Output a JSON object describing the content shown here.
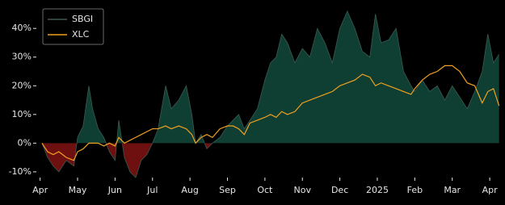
{
  "chart_data": {
    "type": "area-compare",
    "xlim": [
      -0.1,
      12.3
    ],
    "ylim": [
      -12,
      48.5
    ],
    "xticks": [
      {
        "value": 0,
        "label": "Apr"
      },
      {
        "value": 1,
        "label": "May"
      },
      {
        "value": 2,
        "label": "Jun"
      },
      {
        "value": 3,
        "label": "Jul"
      },
      {
        "value": 4,
        "label": "Aug"
      },
      {
        "value": 5,
        "label": "Sep"
      },
      {
        "value": 6,
        "label": "Oct"
      },
      {
        "value": 7,
        "label": "Nov"
      },
      {
        "value": 8,
        "label": "Dec"
      },
      {
        "value": 9,
        "label": "2025"
      },
      {
        "value": 10,
        "label": "Feb"
      },
      {
        "value": 11,
        "label": "Mar"
      },
      {
        "value": 12,
        "label": "Apr"
      }
    ],
    "yticks": [
      {
        "value": -10,
        "label": "-10%"
      },
      {
        "value": 0,
        "label": "0%"
      },
      {
        "value": 10,
        "label": "10%"
      },
      {
        "value": 20,
        "label": "20%"
      },
      {
        "value": 30,
        "label": "30%"
      },
      {
        "value": 40,
        "label": "40%"
      }
    ],
    "legend": "upper left",
    "fill_above": "#0f3f32",
    "fill_below": "#6e1010",
    "x": [
      0.05,
      0.2,
      0.35,
      0.5,
      0.7,
      0.9,
      1.0,
      1.15,
      1.3,
      1.4,
      1.55,
      1.7,
      1.85,
      2.0,
      2.1,
      2.25,
      2.4,
      2.55,
      2.7,
      2.85,
      3.0,
      3.15,
      3.35,
      3.5,
      3.7,
      3.9,
      4.05,
      4.15,
      4.3,
      4.45,
      4.6,
      4.8,
      5.0,
      5.15,
      5.3,
      5.45,
      5.6,
      5.8,
      6.0,
      6.15,
      6.3,
      6.45,
      6.6,
      6.8,
      7.0,
      7.2,
      7.4,
      7.6,
      7.8,
      8.0,
      8.2,
      8.4,
      8.6,
      8.8,
      8.95,
      9.1,
      9.3,
      9.5,
      9.7,
      9.9,
      10.0,
      10.2,
      10.4,
      10.6,
      10.8,
      11.0,
      11.2,
      11.4,
      11.6,
      11.8,
      11.95,
      12.1,
      12.25
    ],
    "series": [
      {
        "name": "SBGI",
        "color": "#3c5a52",
        "values": [
          0,
          -5,
          -8,
          -10,
          -6,
          -8,
          2,
          6,
          20,
          12,
          5,
          2,
          -3,
          -6,
          8,
          -5,
          -10,
          -12,
          -6,
          -4,
          0,
          5,
          20,
          12,
          15,
          20,
          10,
          0,
          3,
          -2,
          0,
          2,
          6,
          8,
          10,
          5,
          8,
          12,
          22,
          28,
          30,
          38,
          35,
          28,
          33,
          30,
          40,
          35,
          28,
          40,
          46,
          40,
          32,
          30,
          45,
          35,
          36,
          40,
          25,
          20,
          18,
          22,
          18,
          20,
          15,
          20,
          16,
          12,
          18,
          25,
          38,
          28,
          31
        ]
      },
      {
        "name": "XLC",
        "color": "#f0a020",
        "values": [
          0,
          -3,
          -4,
          -3,
          -5,
          -6,
          -3,
          -2,
          0,
          0,
          0,
          -1,
          0,
          -1,
          2,
          0,
          1,
          2,
          3,
          4,
          5,
          5,
          6,
          5,
          6,
          5,
          3,
          0,
          2,
          3,
          2,
          5,
          6,
          6,
          5,
          3,
          7,
          8,
          9,
          10,
          9,
          11,
          10,
          11,
          14,
          15,
          16,
          17,
          18,
          20,
          21,
          22,
          24,
          23,
          20,
          21,
          20,
          19,
          18,
          17,
          19,
          22,
          24,
          25,
          27,
          27,
          25,
          21,
          20,
          14,
          18,
          19,
          13
        ]
      }
    ]
  }
}
